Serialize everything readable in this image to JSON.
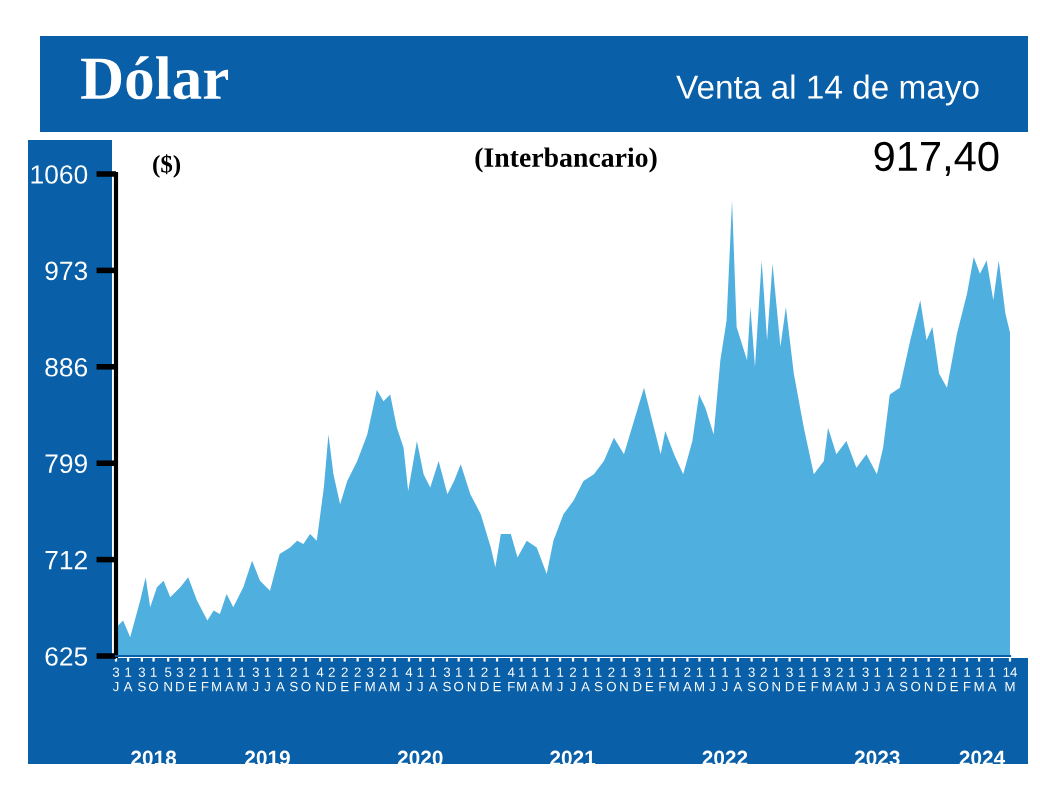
{
  "chart_data": {
    "type": "area",
    "title": "Dólar",
    "subtitle": "Venta al 14 de mayo",
    "ylabel": "($)",
    "annotations": [
      "(Interbancario)",
      "917,40"
    ],
    "color": "#4fb0e0",
    "x": [
      "2018-07-04",
      "2018-07-20",
      "2018-08-06",
      "2018-08-30",
      "2018-09-12",
      "2018-09-23",
      "2018-10-09",
      "2018-10-25",
      "2018-11-10",
      "2018-12-04",
      "2018-12-23",
      "2019-01-13",
      "2019-02-07",
      "2019-02-22",
      "2019-03-09",
      "2019-03-25",
      "2019-04-10",
      "2019-05-04",
      "2019-05-25",
      "2019-06-13",
      "2019-07-07",
      "2019-07-30",
      "2019-08-24",
      "2019-09-10",
      "2019-09-25",
      "2019-10-11",
      "2019-10-27",
      "2019-11-13",
      "2019-11-24",
      "2019-12-06",
      "2019-12-22",
      "2020-01-08",
      "2020-02-01",
      "2020-02-25",
      "2020-03-19",
      "2020-04-04",
      "2020-04-20",
      "2020-05-06",
      "2020-05-22",
      "2020-06-02",
      "2020-06-23",
      "2020-07-09",
      "2020-07-25",
      "2020-08-14",
      "2020-09-04",
      "2020-09-20",
      "2020-10-06",
      "2020-10-29",
      "2020-11-23",
      "2020-12-17",
      "2020-12-28",
      "2021-01-10",
      "2021-02-03",
      "2021-02-19",
      "2021-03-13",
      "2021-04-06",
      "2021-04-30",
      "2021-05-16",
      "2021-06-09",
      "2021-07-03",
      "2021-07-27",
      "2021-08-21",
      "2021-09-14",
      "2021-10-08",
      "2021-11-01",
      "2021-11-25",
      "2021-12-19",
      "2022-01-12",
      "2022-01-28",
      "2022-02-08",
      "2022-03-01",
      "2022-03-23",
      "2022-04-14",
      "2022-04-30",
      "2022-05-15",
      "2022-06-04",
      "2022-06-20",
      "2022-07-05",
      "2022-07-18",
      "2022-07-29",
      "2022-08-23",
      "2022-08-31",
      "2022-09-11",
      "2022-09-27",
      "2022-10-10",
      "2022-10-23",
      "2022-11-11",
      "2022-11-24",
      "2022-12-13",
      "2023-01-06",
      "2023-01-30",
      "2023-02-23",
      "2023-03-05",
      "2023-03-25",
      "2023-04-18",
      "2023-05-12",
      "2023-06-05",
      "2023-06-30",
      "2023-07-15",
      "2023-07-31",
      "2023-08-24",
      "2023-09-18",
      "2023-10-12",
      "2023-10-27",
      "2023-11-10",
      "2023-11-26",
      "2023-12-15",
      "2024-01-08",
      "2024-02-01",
      "2024-02-17",
      "2024-03-03",
      "2024-03-19",
      "2024-04-04",
      "2024-04-17",
      "2024-05-03",
      "2024-05-14"
    ],
    "values": [
      651,
      657,
      642,
      675,
      696,
      669,
      687,
      693,
      678,
      687,
      696,
      675,
      657,
      666,
      663,
      681,
      669,
      687,
      711,
      693,
      684,
      717,
      723,
      729,
      726,
      735,
      729,
      777,
      825,
      789,
      762,
      783,
      801,
      825,
      865,
      855,
      861,
      831,
      813,
      774,
      819,
      789,
      777,
      801,
      771,
      783,
      798,
      771,
      753,
      723,
      705,
      735,
      735,
      714,
      729,
      723,
      699,
      729,
      753,
      765,
      783,
      789,
      801,
      822,
      807,
      837,
      867,
      831,
      807,
      828,
      807,
      789,
      819,
      861,
      849,
      825,
      892,
      928,
      1036,
      922,
      892,
      940,
      886,
      982,
      910,
      979,
      904,
      940,
      880,
      831,
      789,
      801,
      831,
      807,
      819,
      795,
      807,
      789,
      813,
      861,
      867,
      910,
      946,
      910,
      922,
      880,
      867,
      916,
      952,
      985,
      970,
      982,
      946,
      982,
      934,
      917
    ],
    "xlim": [
      "2018-07-03",
      "2024-05-14"
    ],
    "x2lim": [
      "2018-07-03",
      "2024-05-14"
    ],
    "ylim": [
      625,
      1060
    ],
    "yticks": [
      625,
      712,
      799,
      886,
      973,
      1060
    ],
    "xticks": [
      {
        "value": "2018-07-03",
        "label": "3\nJ"
      },
      {
        "value": "2018-08-01",
        "label": "1\nA"
      },
      {
        "value": "2018-09-03",
        "label": "3\nS"
      },
      {
        "value": "2018-10-01",
        "label": "1\nO"
      },
      {
        "value": "2018-11-05",
        "label": "5\nN"
      },
      {
        "value": "2018-12-03",
        "label": "3\nD"
      },
      {
        "value": "2019-01-02",
        "label": "2\nE"
      },
      {
        "value": "2019-02-01",
        "label": "1\nF"
      },
      {
        "value": "2019-03-01",
        "label": "1\nM"
      },
      {
        "value": "2019-04-01",
        "label": "1\nA"
      },
      {
        "value": "2019-05-01",
        "label": "1\nM"
      },
      {
        "value": "2019-06-03",
        "label": "3\nJ"
      },
      {
        "value": "2019-07-01",
        "label": "1\nJ"
      },
      {
        "value": "2019-08-01",
        "label": "1\nA"
      },
      {
        "value": "2019-09-02",
        "label": "2\nS"
      },
      {
        "value": "2019-10-01",
        "label": "1\nO"
      },
      {
        "value": "2019-11-04",
        "label": "4\nN"
      },
      {
        "value": "2019-12-02",
        "label": "2\nD"
      },
      {
        "value": "2020-01-02",
        "label": "2\nE"
      },
      {
        "value": "2020-02-02",
        "label": "2\nF"
      },
      {
        "value": "2020-03-03",
        "label": "3\nM"
      },
      {
        "value": "2020-04-02",
        "label": "2\nA"
      },
      {
        "value": "2020-05-01",
        "label": "1\nM"
      },
      {
        "value": "2020-06-04",
        "label": "4\nJ"
      },
      {
        "value": "2020-07-01",
        "label": "1\nJ"
      },
      {
        "value": "2020-08-01",
        "label": "1\nA"
      },
      {
        "value": "2020-09-03",
        "label": "3\nS"
      },
      {
        "value": "2020-10-01",
        "label": "1\nO"
      },
      {
        "value": "2020-11-01",
        "label": "1\nN"
      },
      {
        "value": "2020-12-02",
        "label": "2\nD"
      },
      {
        "value": "2021-01-01",
        "label": "1\nE"
      },
      {
        "value": "2021-02-04",
        "label": "4\nF"
      },
      {
        "value": "2021-03-01",
        "label": "1\nM"
      },
      {
        "value": "2021-04-01",
        "label": "1\nA"
      },
      {
        "value": "2021-05-01",
        "label": "1\nM"
      },
      {
        "value": "2021-06-01",
        "label": "1\nJ"
      },
      {
        "value": "2021-07-02",
        "label": "2\nJ"
      },
      {
        "value": "2021-08-01",
        "label": "1\nA"
      },
      {
        "value": "2021-09-01",
        "label": "1\nS"
      },
      {
        "value": "2021-10-02",
        "label": "2\nO"
      },
      {
        "value": "2021-11-01",
        "label": "1\nN"
      },
      {
        "value": "2021-12-03",
        "label": "3\nD"
      },
      {
        "value": "2022-01-01",
        "label": "1\nE"
      },
      {
        "value": "2022-02-01",
        "label": "1\nF"
      },
      {
        "value": "2022-03-01",
        "label": "1\nM"
      },
      {
        "value": "2022-04-02",
        "label": "2\nA"
      },
      {
        "value": "2022-05-01",
        "label": "1\nM"
      },
      {
        "value": "2022-06-01",
        "label": "1\nJ"
      },
      {
        "value": "2022-07-01",
        "label": "1\nJ"
      },
      {
        "value": "2022-08-01",
        "label": "1\nA"
      },
      {
        "value": "2022-09-03",
        "label": "3\nS"
      },
      {
        "value": "2022-10-02",
        "label": "2\nO"
      },
      {
        "value": "2022-11-01",
        "label": "1\nN"
      },
      {
        "value": "2022-12-03",
        "label": "3\nD"
      },
      {
        "value": "2023-01-01",
        "label": "1\nE"
      },
      {
        "value": "2023-02-01",
        "label": "1\nF"
      },
      {
        "value": "2023-03-03",
        "label": "3\nM"
      },
      {
        "value": "2023-04-02",
        "label": "2\nA"
      },
      {
        "value": "2023-05-01",
        "label": "1\nM"
      },
      {
        "value": "2023-06-03",
        "label": "3\nJ"
      },
      {
        "value": "2023-07-01",
        "label": "1\nJ"
      },
      {
        "value": "2023-08-01",
        "label": "1\nA"
      },
      {
        "value": "2023-09-02",
        "label": "2\nS"
      },
      {
        "value": "2023-10-01",
        "label": "1\nO"
      },
      {
        "value": "2023-11-01",
        "label": "1\nN"
      },
      {
        "value": "2023-12-02",
        "label": "2\nD"
      },
      {
        "value": "2024-01-01",
        "label": "1\nE"
      },
      {
        "value": "2024-02-01",
        "label": "1\nF"
      },
      {
        "value": "2024-03-01",
        "label": "1\nM"
      },
      {
        "value": "2024-04-01",
        "label": "1\nA"
      },
      {
        "value": "2024-05-14",
        "label": "14\nM"
      }
    ],
    "x2ticks": [
      {
        "value": "2018-10-01",
        "label": "2018"
      },
      {
        "value": "2019-07-01",
        "label": "2019"
      },
      {
        "value": "2020-07-01",
        "label": "2020"
      },
      {
        "value": "2021-07-01",
        "label": "2021"
      },
      {
        "value": "2022-07-01",
        "label": "2022"
      },
      {
        "value": "2023-07-01",
        "label": "2023"
      },
      {
        "value": "2024-03-08",
        "label": "2024"
      }
    ],
    "grid": false
  }
}
